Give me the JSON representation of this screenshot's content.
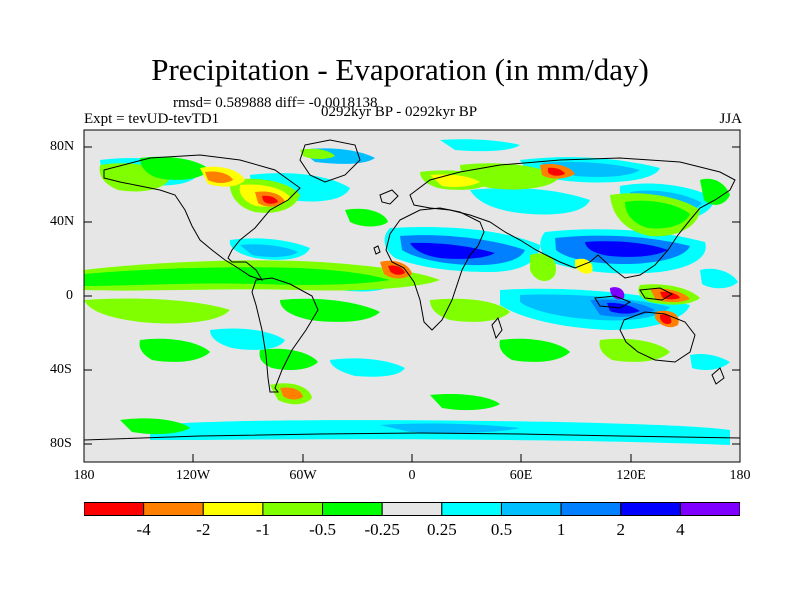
{
  "title": "Precipitation - Evaporation (in mm/day)",
  "stats_line": "rmsd= 0.589888 diff= -0.0018138",
  "expt_label": "Expt = tevUD-tevTD1",
  "period_label": "0292kyr BP - 0292kyr BP",
  "season_label": "JJA",
  "map": {
    "projection": "cylindrical-equidistant",
    "lon_range": [
      -180,
      180
    ],
    "lat_range": [
      -90,
      90
    ],
    "background_color": "#e6e6e6",
    "lat_ticks": [
      "80N",
      "40N",
      "0",
      "40S",
      "80S"
    ],
    "lon_ticks": [
      "180",
      "120W",
      "60W",
      "0",
      "60E",
      "120E",
      "180"
    ]
  },
  "colorbar": {
    "colors": [
      "#ff0000",
      "#ff8000",
      "#ffff00",
      "#80ff00",
      "#00ff00",
      "#e6e6e6",
      "#00ffff",
      "#00bfff",
      "#0080ff",
      "#0000ff",
      "#8000ff"
    ],
    "labels": [
      "-4",
      "-2",
      "-1",
      "-0.5",
      "-0.25",
      "0.25",
      "0.5",
      "1",
      "2",
      "4"
    ]
  },
  "colors": {
    "land_outline": "#000000",
    "neutral": "#e6e6e6"
  }
}
